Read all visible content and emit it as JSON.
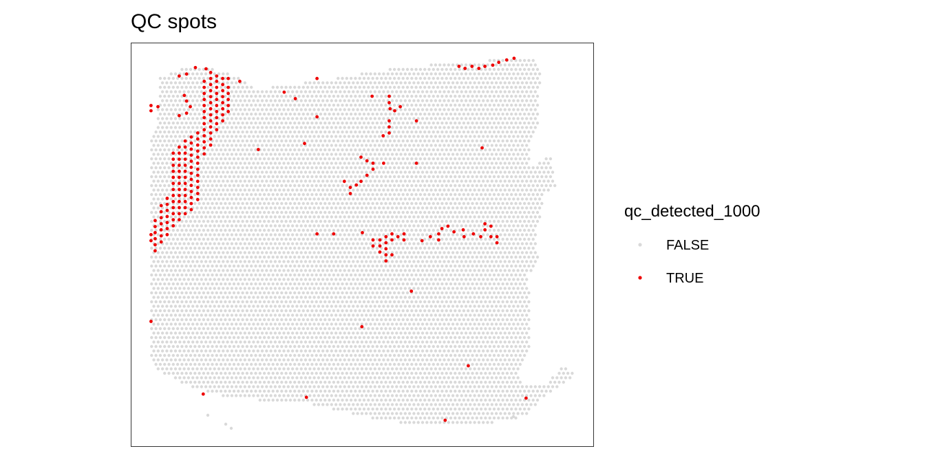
{
  "chart_data": {
    "type": "scatter",
    "title": "QC spots",
    "xlabel": "",
    "ylabel": "",
    "xlim": [
      0,
      1
    ],
    "ylim": [
      0,
      1
    ],
    "grid": false,
    "axes_visible": false,
    "legend": {
      "title": "qc_detected_1000",
      "placement": "right",
      "entries": [
        {
          "label": "FALSE",
          "color": "#d9d9d9"
        },
        {
          "label": "TRUE",
          "color": "#ee0000"
        }
      ]
    },
    "series": [
      {
        "name": "FALSE",
        "color": "#d9d9d9",
        "description": "dense hexagonal grid of tissue spots forming the tissue outline"
      },
      {
        "name": "TRUE",
        "color": "#ee0000",
        "points": [
          [
            0.043,
            0.845
          ],
          [
            0.043,
            0.832
          ],
          [
            0.058,
            0.842
          ],
          [
            0.104,
            0.918
          ],
          [
            0.12,
            0.923
          ],
          [
            0.139,
            0.939
          ],
          [
            0.162,
            0.936
          ],
          [
            0.172,
            0.927
          ],
          [
            0.185,
            0.918
          ],
          [
            0.198,
            0.912
          ],
          [
            0.21,
            0.912
          ],
          [
            0.235,
            0.905
          ],
          [
            0.115,
            0.87
          ],
          [
            0.12,
            0.856
          ],
          [
            0.128,
            0.842
          ],
          [
            0.12,
            0.826
          ],
          [
            0.104,
            0.82
          ],
          [
            0.158,
            0.905
          ],
          [
            0.158,
            0.89
          ],
          [
            0.158,
            0.875
          ],
          [
            0.158,
            0.86
          ],
          [
            0.158,
            0.845
          ],
          [
            0.158,
            0.83
          ],
          [
            0.158,
            0.815
          ],
          [
            0.158,
            0.8
          ],
          [
            0.158,
            0.785
          ],
          [
            0.158,
            0.77
          ],
          [
            0.158,
            0.755
          ],
          [
            0.158,
            0.74
          ],
          [
            0.158,
            0.725
          ],
          [
            0.172,
            0.912
          ],
          [
            0.172,
            0.897
          ],
          [
            0.172,
            0.882
          ],
          [
            0.172,
            0.867
          ],
          [
            0.172,
            0.852
          ],
          [
            0.172,
            0.837
          ],
          [
            0.172,
            0.822
          ],
          [
            0.172,
            0.807
          ],
          [
            0.172,
            0.792
          ],
          [
            0.172,
            0.777
          ],
          [
            0.172,
            0.762
          ],
          [
            0.172,
            0.747
          ],
          [
            0.185,
            0.905
          ],
          [
            0.185,
            0.89
          ],
          [
            0.185,
            0.875
          ],
          [
            0.185,
            0.86
          ],
          [
            0.185,
            0.845
          ],
          [
            0.185,
            0.83
          ],
          [
            0.185,
            0.815
          ],
          [
            0.185,
            0.8
          ],
          [
            0.185,
            0.785
          ],
          [
            0.198,
            0.897
          ],
          [
            0.198,
            0.882
          ],
          [
            0.198,
            0.867
          ],
          [
            0.198,
            0.852
          ],
          [
            0.198,
            0.837
          ],
          [
            0.198,
            0.822
          ],
          [
            0.198,
            0.807
          ],
          [
            0.21,
            0.89
          ],
          [
            0.21,
            0.875
          ],
          [
            0.21,
            0.86
          ],
          [
            0.21,
            0.845
          ],
          [
            0.21,
            0.83
          ],
          [
            0.144,
            0.777
          ],
          [
            0.144,
            0.762
          ],
          [
            0.144,
            0.747
          ],
          [
            0.144,
            0.732
          ],
          [
            0.144,
            0.717
          ],
          [
            0.144,
            0.702
          ],
          [
            0.144,
            0.687
          ],
          [
            0.144,
            0.672
          ],
          [
            0.144,
            0.657
          ],
          [
            0.144,
            0.642
          ],
          [
            0.144,
            0.627
          ],
          [
            0.144,
            0.612
          ],
          [
            0.13,
            0.767
          ],
          [
            0.13,
            0.752
          ],
          [
            0.13,
            0.737
          ],
          [
            0.13,
            0.722
          ],
          [
            0.13,
            0.707
          ],
          [
            0.13,
            0.692
          ],
          [
            0.13,
            0.677
          ],
          [
            0.13,
            0.662
          ],
          [
            0.13,
            0.647
          ],
          [
            0.13,
            0.632
          ],
          [
            0.13,
            0.617
          ],
          [
            0.13,
            0.602
          ],
          [
            0.13,
            0.587
          ],
          [
            0.117,
            0.757
          ],
          [
            0.117,
            0.742
          ],
          [
            0.117,
            0.727
          ],
          [
            0.117,
            0.712
          ],
          [
            0.117,
            0.697
          ],
          [
            0.117,
            0.682
          ],
          [
            0.117,
            0.667
          ],
          [
            0.117,
            0.652
          ],
          [
            0.117,
            0.637
          ],
          [
            0.117,
            0.622
          ],
          [
            0.117,
            0.607
          ],
          [
            0.117,
            0.592
          ],
          [
            0.117,
            0.577
          ],
          [
            0.104,
            0.742
          ],
          [
            0.104,
            0.727
          ],
          [
            0.104,
            0.712
          ],
          [
            0.104,
            0.697
          ],
          [
            0.104,
            0.682
          ],
          [
            0.104,
            0.667
          ],
          [
            0.104,
            0.652
          ],
          [
            0.104,
            0.637
          ],
          [
            0.104,
            0.622
          ],
          [
            0.104,
            0.607
          ],
          [
            0.104,
            0.592
          ],
          [
            0.104,
            0.577
          ],
          [
            0.104,
            0.562
          ],
          [
            0.091,
            0.727
          ],
          [
            0.091,
            0.712
          ],
          [
            0.091,
            0.697
          ],
          [
            0.091,
            0.682
          ],
          [
            0.091,
            0.667
          ],
          [
            0.091,
            0.652
          ],
          [
            0.091,
            0.637
          ],
          [
            0.091,
            0.622
          ],
          [
            0.091,
            0.607
          ],
          [
            0.091,
            0.592
          ],
          [
            0.091,
            0.577
          ],
          [
            0.091,
            0.562
          ],
          [
            0.091,
            0.547
          ],
          [
            0.078,
            0.615
          ],
          [
            0.078,
            0.6
          ],
          [
            0.078,
            0.585
          ],
          [
            0.078,
            0.57
          ],
          [
            0.078,
            0.555
          ],
          [
            0.078,
            0.54
          ],
          [
            0.078,
            0.525
          ],
          [
            0.065,
            0.597
          ],
          [
            0.065,
            0.582
          ],
          [
            0.065,
            0.567
          ],
          [
            0.065,
            0.552
          ],
          [
            0.065,
            0.537
          ],
          [
            0.065,
            0.522
          ],
          [
            0.065,
            0.507
          ],
          [
            0.052,
            0.56
          ],
          [
            0.052,
            0.545
          ],
          [
            0.052,
            0.53
          ],
          [
            0.052,
            0.515
          ],
          [
            0.052,
            0.5
          ],
          [
            0.052,
            0.485
          ],
          [
            0.043,
            0.525
          ],
          [
            0.043,
            0.51
          ],
          [
            0.043,
            0.31
          ],
          [
            0.402,
            0.912
          ],
          [
            0.331,
            0.878
          ],
          [
            0.355,
            0.862
          ],
          [
            0.402,
            0.817
          ],
          [
            0.275,
            0.736
          ],
          [
            0.375,
            0.751
          ],
          [
            0.521,
            0.868
          ],
          [
            0.558,
            0.868
          ],
          [
            0.558,
            0.852
          ],
          [
            0.56,
            0.837
          ],
          [
            0.57,
            0.832
          ],
          [
            0.582,
            0.842
          ],
          [
            0.558,
            0.807
          ],
          [
            0.558,
            0.792
          ],
          [
            0.558,
            0.777
          ],
          [
            0.545,
            0.77
          ],
          [
            0.617,
            0.807
          ],
          [
            0.617,
            0.702
          ],
          [
            0.497,
            0.717
          ],
          [
            0.51,
            0.708
          ],
          [
            0.523,
            0.702
          ],
          [
            0.523,
            0.687
          ],
          [
            0.51,
            0.672
          ],
          [
            0.497,
            0.657
          ],
          [
            0.487,
            0.648
          ],
          [
            0.474,
            0.642
          ],
          [
            0.474,
            0.627
          ],
          [
            0.461,
            0.657
          ],
          [
            0.546,
            0.702
          ],
          [
            0.438,
            0.527
          ],
          [
            0.402,
            0.527
          ],
          [
            0.5,
            0.53
          ],
          [
            0.523,
            0.512
          ],
          [
            0.523,
            0.497
          ],
          [
            0.538,
            0.512
          ],
          [
            0.538,
            0.497
          ],
          [
            0.538,
            0.482
          ],
          [
            0.551,
            0.52
          ],
          [
            0.551,
            0.505
          ],
          [
            0.564,
            0.527
          ],
          [
            0.564,
            0.512
          ],
          [
            0.577,
            0.52
          ],
          [
            0.59,
            0.527
          ],
          [
            0.59,
            0.512
          ],
          [
            0.551,
            0.49
          ],
          [
            0.564,
            0.475
          ],
          [
            0.551,
            0.475
          ],
          [
            0.551,
            0.46
          ],
          [
            0.629,
            0.51
          ],
          [
            0.647,
            0.52
          ],
          [
            0.665,
            0.527
          ],
          [
            0.665,
            0.512
          ],
          [
            0.672,
            0.54
          ],
          [
            0.685,
            0.546
          ],
          [
            0.698,
            0.532
          ],
          [
            0.718,
            0.537
          ],
          [
            0.72,
            0.52
          ],
          [
            0.74,
            0.527
          ],
          [
            0.765,
            0.552
          ],
          [
            0.765,
            0.537
          ],
          [
            0.778,
            0.546
          ],
          [
            0.778,
            0.52
          ],
          [
            0.791,
            0.52
          ],
          [
            0.791,
            0.505
          ],
          [
            0.756,
            0.52
          ],
          [
            0.709,
            0.942
          ],
          [
            0.722,
            0.937
          ],
          [
            0.737,
            0.942
          ],
          [
            0.752,
            0.937
          ],
          [
            0.765,
            0.942
          ],
          [
            0.782,
            0.945
          ],
          [
            0.795,
            0.952
          ],
          [
            0.812,
            0.958
          ],
          [
            0.828,
            0.962
          ],
          [
            0.759,
            0.74
          ],
          [
            0.606,
            0.385
          ],
          [
            0.499,
            0.297
          ],
          [
            0.729,
            0.2
          ],
          [
            0.156,
            0.13
          ],
          [
            0.379,
            0.122
          ],
          [
            0.854,
            0.12
          ],
          [
            0.679,
            0.065
          ]
        ]
      }
    ]
  }
}
